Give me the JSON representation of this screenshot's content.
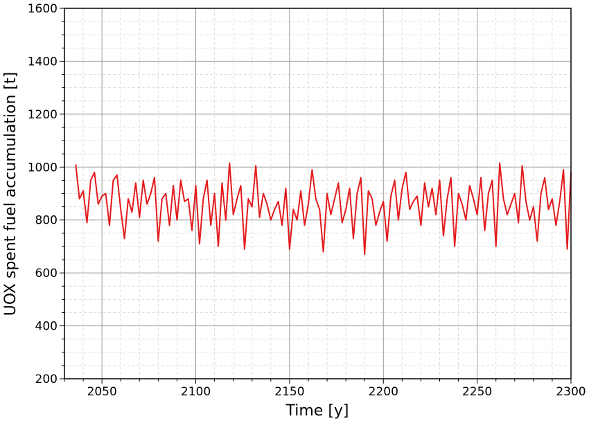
{
  "chart_data": {
    "type": "line",
    "xlabel": "Time [y]",
    "ylabel": "UOX spent fuel accumulation [t]",
    "x": [
      2036,
      2038,
      2040,
      2042,
      2044,
      2046,
      2048,
      2050,
      2052,
      2054,
      2056,
      2058,
      2060,
      2062,
      2064,
      2066,
      2068,
      2070,
      2072,
      2074,
      2076,
      2078,
      2080,
      2082,
      2084,
      2086,
      2088,
      2090,
      2092,
      2094,
      2096,
      2098,
      2100,
      2102,
      2104,
      2106,
      2108,
      2110,
      2112,
      2114,
      2116,
      2118,
      2120,
      2122,
      2124,
      2126,
      2128,
      2130,
      2132,
      2134,
      2136,
      2138,
      2140,
      2142,
      2144,
      2146,
      2148,
      2150,
      2152,
      2154,
      2156,
      2158,
      2160,
      2162,
      2164,
      2166,
      2168,
      2170,
      2172,
      2174,
      2176,
      2178,
      2180,
      2182,
      2184,
      2186,
      2188,
      2190,
      2192,
      2194,
      2196,
      2198,
      2200,
      2202,
      2204,
      2206,
      2208,
      2210,
      2212,
      2214,
      2216,
      2218,
      2220,
      2222,
      2224,
      2226,
      2228,
      2230,
      2232,
      2234,
      2236,
      2238,
      2240,
      2242,
      2244,
      2246,
      2248,
      2250,
      2252,
      2254,
      2256,
      2258,
      2260,
      2262,
      2264,
      2266,
      2268,
      2270,
      2272,
      2274,
      2276,
      2278,
      2280,
      2282,
      2284,
      2286,
      2288,
      2290,
      2292,
      2294,
      2296,
      2298,
      2300
    ],
    "series": [
      {
        "name": "UOX",
        "color": "#e41a1c",
        "values": [
          1010,
          880,
          910,
          790,
          950,
          980,
          860,
          890,
          900,
          780,
          950,
          970,
          840,
          730,
          880,
          830,
          940,
          810,
          950,
          860,
          900,
          960,
          720,
          880,
          900,
          780,
          930,
          800,
          950,
          870,
          880,
          760,
          930,
          710,
          880,
          950,
          780,
          900,
          700,
          940,
          800,
          1015,
          820,
          880,
          930,
          690,
          880,
          850,
          1005,
          810,
          900,
          860,
          800,
          840,
          870,
          780,
          920,
          690,
          840,
          800,
          910,
          780,
          860,
          990,
          880,
          840,
          680,
          900,
          820,
          880,
          940,
          790,
          840,
          920,
          730,
          900,
          960,
          670,
          910,
          880,
          780,
          830,
          870,
          720,
          890,
          950,
          800,
          920,
          980,
          840,
          870,
          890,
          780,
          940,
          850,
          920,
          820,
          950,
          740,
          880,
          960,
          700,
          900,
          860,
          800,
          930,
          880,
          820,
          960,
          760,
          900,
          950,
          700,
          1015,
          880,
          820,
          860,
          900,
          790,
          1005,
          870,
          800,
          850,
          720,
          900,
          960,
          840,
          880,
          780,
          870,
          990,
          690,
          980
        ]
      }
    ],
    "xlim": [
      2030,
      2300
    ],
    "ylim": [
      200,
      1600
    ],
    "xticks": [
      2050,
      2100,
      2150,
      2200,
      2250,
      2300
    ],
    "yticks": [
      200,
      400,
      600,
      800,
      1000,
      1200,
      1400,
      1600
    ],
    "xminor_ticks": [
      2030,
      2040,
      2060,
      2070,
      2080,
      2090,
      2110,
      2120,
      2130,
      2140,
      2160,
      2170,
      2180,
      2190,
      2210,
      2220,
      2230,
      2240,
      2260,
      2270,
      2280,
      2290
    ],
    "yminor_ticks": [
      250,
      300,
      350,
      450,
      500,
      550,
      650,
      700,
      750,
      850,
      900,
      950,
      1050,
      1100,
      1150,
      1250,
      1300,
      1350,
      1450,
      1500,
      1550
    ],
    "grid": true
  }
}
